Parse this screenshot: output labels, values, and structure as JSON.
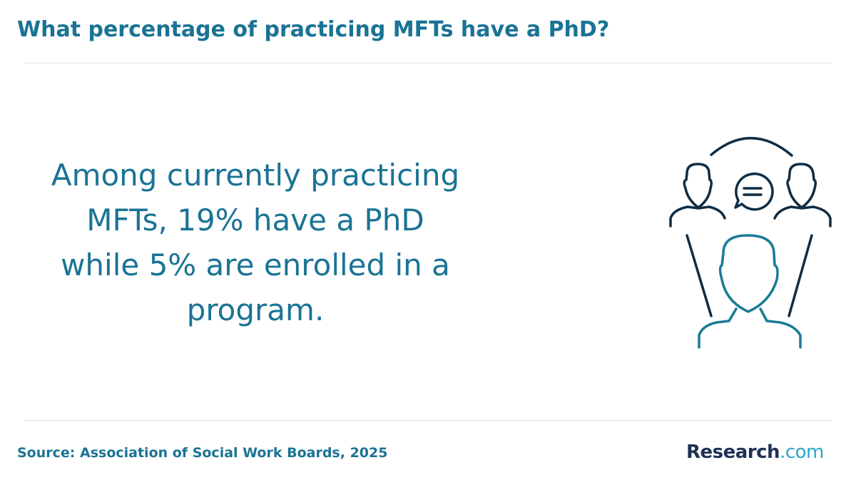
{
  "header": {
    "title": "What percentage of practicing MFTs have a PhD?"
  },
  "body": {
    "text": "Among currently practicing MFTs, 19% have a PhD while 5% are enrolled in a program."
  },
  "footer": {
    "source": "Source: Association of Social Work Boards, 2025",
    "logo": {
      "brand": "Research",
      "suffix": ".com"
    }
  }
}
